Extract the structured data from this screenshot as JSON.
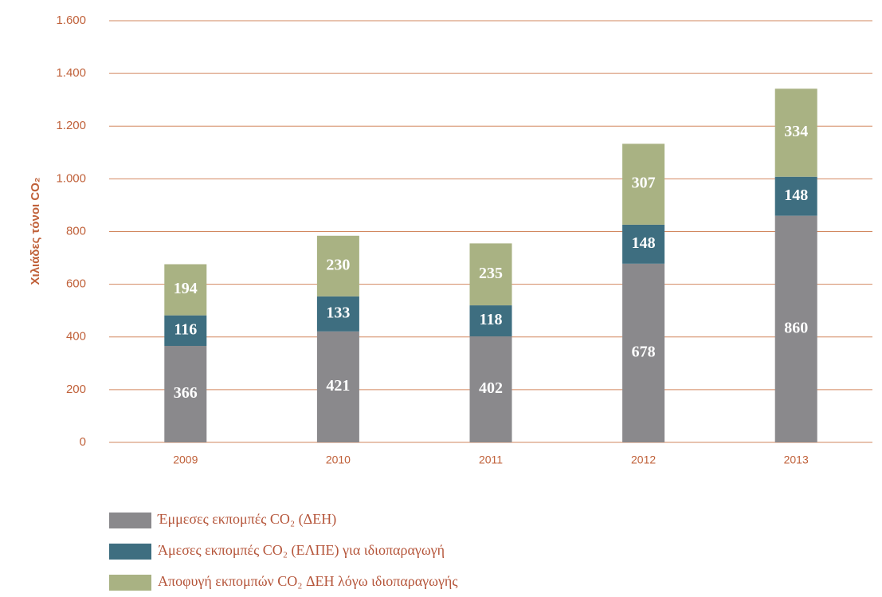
{
  "chart_data": {
    "type": "stacked_bar",
    "y_label": "Χιλιάδες τόνοι CO₂",
    "categories": [
      "2009",
      "2010",
      "2011",
      "2012",
      "2013"
    ],
    "series": [
      {
        "name": "Έμμεσες εκπομπές CO₂ (ΔΕΗ)",
        "color": "#8a898c",
        "values": [
          366,
          421,
          402,
          678,
          860
        ]
      },
      {
        "name": "Άμεσες εκπομπές CO₂ (ΕΛΠΕ) για ιδιοπαραγωγή",
        "color": "#3e6e80",
        "values": [
          116,
          133,
          118,
          148,
          148
        ]
      },
      {
        "name": "Αποφυγή εκπομπών CO₂ ΔΕΗ λόγω ιδιοπαραγωγής",
        "color": "#a9b283",
        "values": [
          194,
          230,
          235,
          307,
          334
        ]
      }
    ],
    "ylim": [
      0,
      1600
    ],
    "yticks": [
      0,
      200,
      400,
      600,
      800,
      {
        "value": 1000,
        "label": "1.000"
      },
      {
        "value": 1200,
        "label": "1.200"
      },
      {
        "value": 1400,
        "label": "1.400"
      },
      {
        "value": 1600,
        "label": "1.600"
      }
    ],
    "grid": true,
    "grid_color": "#d2875f",
    "legend": "bottom"
  }
}
